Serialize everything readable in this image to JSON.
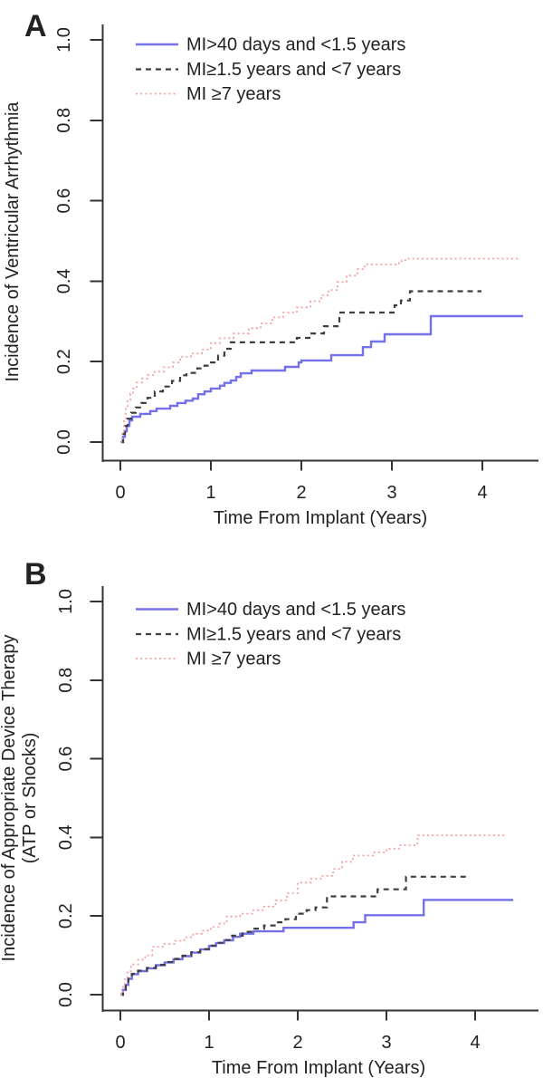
{
  "figure": {
    "background": "#ffffff",
    "axis_color": "#333333",
    "panels": [
      "A",
      "B"
    ]
  },
  "chart_data": [
    {
      "type": "line",
      "panel_label": "A",
      "title": "",
      "xlabel": "Time From Implant (Years)",
      "ylabel": "Incidence of Ventricular Arrhythmia",
      "ylabel_line2": "",
      "xlim": [
        0,
        4.6
      ],
      "ylim": [
        0,
        1.0
      ],
      "xticks": [
        "0",
        "1",
        "2",
        "3",
        "4"
      ],
      "yticks": [
        "0.0",
        "0.2",
        "0.4",
        "0.6",
        "0.8",
        "1.0"
      ],
      "grid": false,
      "legend_position": "top-left-inside",
      "legend": [
        {
          "label": "MI>40 days and <1.5 years",
          "style": "solid",
          "color": "#7370e9"
        },
        {
          "label": "MI≥1.5 years and <7 years",
          "style": "dashed",
          "color": "#3f3f3f"
        },
        {
          "label": "MI ≥7 years",
          "style": "dotted",
          "color": "#f4a2a2"
        }
      ],
      "series": [
        {
          "name": "MI>40 days and <1.5 years",
          "style": "solid",
          "color": "#7370e9",
          "end": 4.45,
          "points": [
            [
              0,
              0
            ],
            [
              0.03,
              0.013
            ],
            [
              0.05,
              0.027
            ],
            [
              0.07,
              0.04
            ],
            [
              0.1,
              0.054
            ],
            [
              0.13,
              0.063
            ],
            [
              0.22,
              0.07
            ],
            [
              0.33,
              0.077
            ],
            [
              0.4,
              0.083
            ],
            [
              0.55,
              0.09
            ],
            [
              0.63,
              0.097
            ],
            [
              0.72,
              0.103
            ],
            [
              0.8,
              0.108
            ],
            [
              0.86,
              0.119
            ],
            [
              0.93,
              0.126
            ],
            [
              1.0,
              0.133
            ],
            [
              1.1,
              0.14
            ],
            [
              1.15,
              0.147
            ],
            [
              1.22,
              0.153
            ],
            [
              1.28,
              0.162
            ],
            [
              1.33,
              0.171
            ],
            [
              1.45,
              0.178
            ],
            [
              1.82,
              0.187
            ],
            [
              1.97,
              0.198
            ],
            [
              2.0,
              0.203
            ],
            [
              2.33,
              0.216
            ],
            [
              2.68,
              0.236
            ],
            [
              2.77,
              0.25
            ],
            [
              2.92,
              0.268
            ],
            [
              3.43,
              0.313
            ]
          ]
        },
        {
          "name": "MI≥1.5 years and <7 years",
          "style": "dashed",
          "color": "#3f3f3f",
          "end": 3.99,
          "points": [
            [
              0,
              0
            ],
            [
              0.03,
              0.02
            ],
            [
              0.05,
              0.04
            ],
            [
              0.08,
              0.058
            ],
            [
              0.12,
              0.073
            ],
            [
              0.17,
              0.086
            ],
            [
              0.23,
              0.097
            ],
            [
              0.3,
              0.11
            ],
            [
              0.38,
              0.126
            ],
            [
              0.47,
              0.138
            ],
            [
              0.57,
              0.152
            ],
            [
              0.66,
              0.166
            ],
            [
              0.73,
              0.172
            ],
            [
              0.85,
              0.183
            ],
            [
              0.93,
              0.19
            ],
            [
              1.0,
              0.198
            ],
            [
              1.08,
              0.215
            ],
            [
              1.15,
              0.232
            ],
            [
              1.22,
              0.248
            ],
            [
              1.95,
              0.259
            ],
            [
              2.1,
              0.27
            ],
            [
              2.25,
              0.288
            ],
            [
              2.42,
              0.322
            ],
            [
              3.03,
              0.34
            ],
            [
              3.1,
              0.352
            ],
            [
              3.2,
              0.375
            ]
          ]
        },
        {
          "name": "MI ≥7 years",
          "style": "dotted",
          "color": "#f4a2a2",
          "end": 4.4,
          "points": [
            [
              0,
              0
            ],
            [
              0.02,
              0.025
            ],
            [
              0.04,
              0.055
            ],
            [
              0.06,
              0.085
            ],
            [
              0.08,
              0.105
            ],
            [
              0.11,
              0.12
            ],
            [
              0.14,
              0.133
            ],
            [
              0.18,
              0.148
            ],
            [
              0.24,
              0.158
            ],
            [
              0.3,
              0.167
            ],
            [
              0.38,
              0.175
            ],
            [
              0.48,
              0.186
            ],
            [
              0.58,
              0.198
            ],
            [
              0.66,
              0.212
            ],
            [
              0.78,
              0.22
            ],
            [
              0.9,
              0.23
            ],
            [
              1.0,
              0.246
            ],
            [
              1.1,
              0.258
            ],
            [
              1.25,
              0.27
            ],
            [
              1.42,
              0.283
            ],
            [
              1.55,
              0.295
            ],
            [
              1.68,
              0.31
            ],
            [
              1.8,
              0.322
            ],
            [
              1.95,
              0.335
            ],
            [
              2.1,
              0.35
            ],
            [
              2.22,
              0.365
            ],
            [
              2.3,
              0.378
            ],
            [
              2.4,
              0.398
            ],
            [
              2.5,
              0.414
            ],
            [
              2.62,
              0.43
            ],
            [
              2.7,
              0.442
            ],
            [
              3.08,
              0.45
            ],
            [
              3.15,
              0.456
            ]
          ]
        }
      ]
    },
    {
      "type": "line",
      "panel_label": "B",
      "title": "",
      "xlabel": "Time From Implant (Years)",
      "ylabel": "Incidence of Appropriate Device Therapy",
      "ylabel_line2": "(ATP or Shocks)",
      "xlim": [
        0,
        4.6
      ],
      "ylim": [
        0,
        1.0
      ],
      "xticks": [
        "0",
        "1",
        "2",
        "3",
        "4"
      ],
      "yticks": [
        "0.0",
        "0.2",
        "0.4",
        "0.6",
        "0.8",
        "1.0"
      ],
      "grid": false,
      "legend_position": "top-left-inside",
      "legend": [
        {
          "label": "MI>40 days and <1.5 years",
          "style": "solid",
          "color": "#7370e9"
        },
        {
          "label": "MI≥1.5 years and <7 years",
          "style": "dashed",
          "color": "#3f3f3f"
        },
        {
          "label": "MI ≥7 years",
          "style": "dotted",
          "color": "#f4a2a2"
        }
      ],
      "series": [
        {
          "name": "MI>40 days and <1.5 years",
          "style": "solid",
          "color": "#7370e9",
          "end": 4.43,
          "points": [
            [
              0,
              0
            ],
            [
              0.03,
              0.012
            ],
            [
              0.06,
              0.025
            ],
            [
              0.09,
              0.04
            ],
            [
              0.13,
              0.052
            ],
            [
              0.2,
              0.06
            ],
            [
              0.3,
              0.067
            ],
            [
              0.4,
              0.075
            ],
            [
              0.5,
              0.082
            ],
            [
              0.6,
              0.09
            ],
            [
              0.7,
              0.098
            ],
            [
              0.8,
              0.107
            ],
            [
              0.9,
              0.115
            ],
            [
              1.0,
              0.124
            ],
            [
              1.08,
              0.131
            ],
            [
              1.17,
              0.138
            ],
            [
              1.27,
              0.147
            ],
            [
              1.35,
              0.155
            ],
            [
              1.5,
              0.161
            ],
            [
              1.84,
              0.17
            ],
            [
              2.63,
              0.184
            ],
            [
              2.76,
              0.202
            ],
            [
              3.42,
              0.241
            ]
          ]
        },
        {
          "name": "MI≥1.5 years and <7 years",
          "style": "dashed",
          "color": "#3f3f3f",
          "end": 3.92,
          "points": [
            [
              0,
              0
            ],
            [
              0.03,
              0.013
            ],
            [
              0.06,
              0.026
            ],
            [
              0.09,
              0.041
            ],
            [
              0.13,
              0.053
            ],
            [
              0.2,
              0.061
            ],
            [
              0.3,
              0.068
            ],
            [
              0.4,
              0.076
            ],
            [
              0.5,
              0.083
            ],
            [
              0.6,
              0.091
            ],
            [
              0.7,
              0.099
            ],
            [
              0.8,
              0.108
            ],
            [
              0.9,
              0.116
            ],
            [
              1.0,
              0.125
            ],
            [
              1.08,
              0.132
            ],
            [
              1.17,
              0.139
            ],
            [
              1.26,
              0.15
            ],
            [
              1.38,
              0.16
            ],
            [
              1.5,
              0.168
            ],
            [
              1.62,
              0.176
            ],
            [
              1.74,
              0.184
            ],
            [
              1.86,
              0.192
            ],
            [
              1.98,
              0.206
            ],
            [
              2.1,
              0.215
            ],
            [
              2.2,
              0.222
            ],
            [
              2.33,
              0.25
            ],
            [
              2.9,
              0.268
            ],
            [
              3.22,
              0.3
            ]
          ]
        },
        {
          "name": "MI ≥7 years",
          "style": "dotted",
          "color": "#f4a2a2",
          "end": 4.33,
          "points": [
            [
              0,
              0
            ],
            [
              0.03,
              0.022
            ],
            [
              0.05,
              0.042
            ],
            [
              0.08,
              0.06
            ],
            [
              0.12,
              0.077
            ],
            [
              0.2,
              0.089
            ],
            [
              0.28,
              0.1
            ],
            [
              0.36,
              0.122
            ],
            [
              0.5,
              0.129
            ],
            [
              0.62,
              0.137
            ],
            [
              0.72,
              0.146
            ],
            [
              0.82,
              0.155
            ],
            [
              0.92,
              0.163
            ],
            [
              1.02,
              0.172
            ],
            [
              1.12,
              0.181
            ],
            [
              1.2,
              0.199
            ],
            [
              1.35,
              0.206
            ],
            [
              1.5,
              0.215
            ],
            [
              1.62,
              0.224
            ],
            [
              1.75,
              0.24
            ],
            [
              1.88,
              0.258
            ],
            [
              2.0,
              0.285
            ],
            [
              2.15,
              0.295
            ],
            [
              2.28,
              0.302
            ],
            [
              2.4,
              0.32
            ],
            [
              2.5,
              0.338
            ],
            [
              2.62,
              0.354
            ],
            [
              2.85,
              0.362
            ],
            [
              3.0,
              0.371
            ],
            [
              3.14,
              0.38
            ],
            [
              3.35,
              0.405
            ]
          ]
        }
      ]
    }
  ]
}
